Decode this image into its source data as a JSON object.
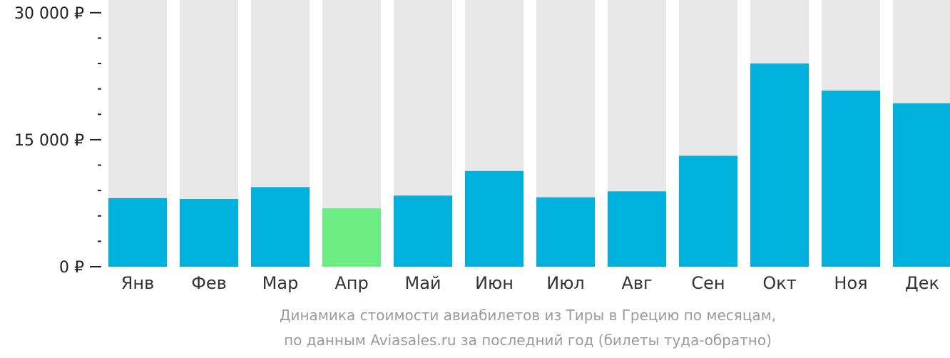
{
  "colors": {
    "track": "#e8e8e8",
    "bar": "#00b0dd",
    "bar_min": "#6ced84",
    "axis": "#222222"
  },
  "caption": {
    "line1": "Динамика стоимости авиабилетов из Тиры в Грецию по месяцам,",
    "line2": "по данным Aviasales.ru за последний год (билеты туда-обратно)"
  },
  "chart_data": {
    "type": "bar",
    "categories": [
      "Янв",
      "Фев",
      "Мар",
      "Апр",
      "Май",
      "Июн",
      "Июл",
      "Авг",
      "Сен",
      "Окт",
      "Ноя",
      "Дек"
    ],
    "values": [
      8100,
      8000,
      9400,
      6900,
      8400,
      11300,
      8200,
      8900,
      13100,
      24000,
      20800,
      19300
    ],
    "highlight_index": 3,
    "ylim": [
      0,
      31500
    ],
    "yticks": [
      0,
      15000,
      30000
    ],
    "ytick_labels": [
      "0 ₽",
      "15 000 ₽",
      "30 000 ₽"
    ],
    "minor_tick_step": 3000,
    "title": "",
    "xlabel": "",
    "ylabel": ""
  }
}
